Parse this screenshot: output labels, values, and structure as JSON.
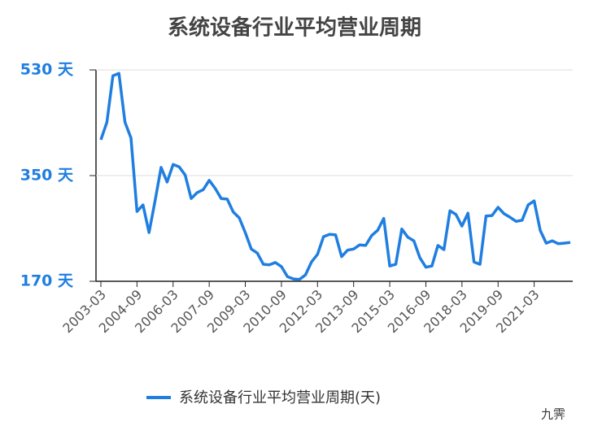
{
  "chart_data": {
    "type": "line",
    "title": "系统设备行业平均营业周期",
    "categories": [
      "2003-03",
      null,
      null,
      null,
      null,
      null,
      "2004-09",
      null,
      null,
      null,
      null,
      null,
      "2006-03",
      null,
      null,
      null,
      null,
      null,
      "2007-09",
      null,
      null,
      null,
      null,
      null,
      "2009-03",
      null,
      null,
      null,
      null,
      null,
      "2010-09",
      null,
      null,
      null,
      null,
      null,
      "2012-03",
      null,
      null,
      null,
      null,
      null,
      "2013-09",
      null,
      null,
      null,
      null,
      null,
      "2015-03",
      null,
      null,
      null,
      null,
      null,
      "2016-09",
      null,
      null,
      null,
      null,
      null,
      "2018-03",
      null,
      null,
      null,
      null,
      null,
      "2019-09",
      null,
      null,
      null,
      null,
      null,
      "2021-03",
      null,
      null,
      null,
      null,
      null,
      null
    ],
    "series": [
      {
        "name": "系统设备行业平均营业周期(天)",
        "color": "#1f7ee0",
        "values": [
          411,
          441,
          520,
          524,
          441,
          414,
          289,
          300,
          253,
          307,
          364,
          339,
          369,
          365,
          351,
          311,
          321,
          326,
          342,
          328,
          311,
          310,
          288,
          278,
          253,
          225,
          218,
          199,
          198,
          202,
          195,
          178,
          174,
          173,
          181,
          203,
          216,
          246,
          250,
          249,
          212,
          223,
          225,
          232,
          231,
          248,
          257,
          277,
          196,
          199,
          259,
          245,
          239,
          210,
          194,
          196,
          231,
          224,
          290,
          284,
          264,
          286,
          203,
          199,
          281,
          282,
          296,
          285,
          279,
          272,
          274,
          300,
          307,
          257,
          235,
          239,
          234,
          235,
          236
        ]
      }
    ],
    "ylim": [
      170,
      530
    ],
    "yticks": [
      {
        "value": 170,
        "label": "170 天"
      },
      {
        "value": 350,
        "label": "350 天"
      },
      {
        "value": 530,
        "label": "530 天"
      }
    ],
    "grid": true,
    "legend": "bottom",
    "watermark": "九霁"
  }
}
